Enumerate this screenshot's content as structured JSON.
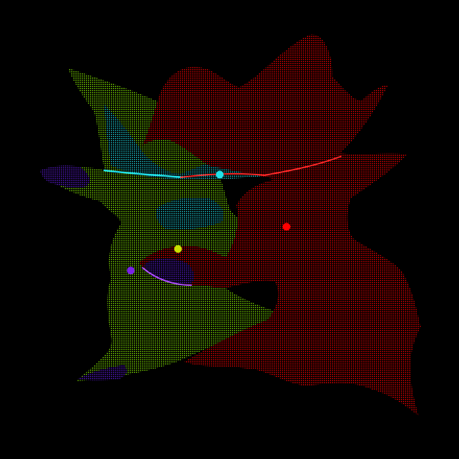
{
  "scene": {
    "background": "#000000",
    "colors": {
      "red": "#ff0000",
      "lime": "#88ee00",
      "cyan": "#22e0e8",
      "violet": "#5a1ad0"
    },
    "markers": [
      {
        "name": "cyan-marker",
        "color": "#22e0e8"
      },
      {
        "name": "red-marker",
        "color": "#ff0000"
      },
      {
        "name": "yellow-marker",
        "color": "#c8e000"
      },
      {
        "name": "violet-marker",
        "color": "#7a22e8"
      }
    ]
  }
}
